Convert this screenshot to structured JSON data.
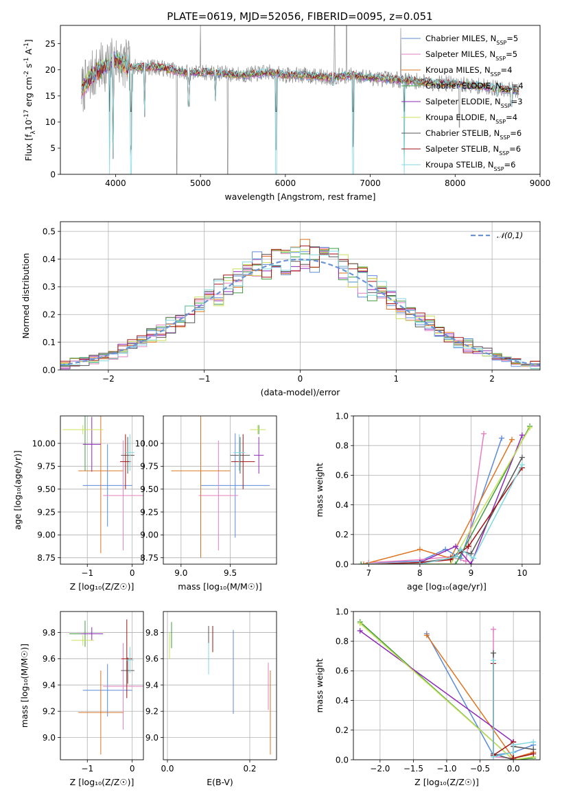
{
  "title": "PLATE=0619, MJD=52056, FIBERID=0095, z=0.051",
  "colors": {
    "chabrier_miles": "#5b8bd9",
    "salpeter_miles": "#e57fc0",
    "kroupa_miles": "#de7420",
    "chabrier_elodie": "#3e9b3e",
    "salpeter_elodie": "#8e2ab5",
    "kroupa_elodie": "#c9e05a",
    "chabrier_stelib": "#555555",
    "salpeter_stelib": "#a11212",
    "kroupa_stelib": "#7fd8e0",
    "data": "#8c8c8c",
    "normal": "#6a93d6"
  },
  "legend_spectrum": [
    {
      "key": "chabrier_miles",
      "prefix": "Chabrier MILES, N",
      "sub": "SSP",
      "suffix": "=5"
    },
    {
      "key": "salpeter_miles",
      "prefix": "Salpeter MILES, N",
      "sub": "SSP",
      "suffix": "=5"
    },
    {
      "key": "kroupa_miles",
      "prefix": "Kroupa MILES, N",
      "sub": "SSP",
      "suffix": "=4"
    },
    {
      "key": "chabrier_elodie",
      "prefix": "Chabrier ELODIE, N",
      "sub": "SSP",
      "suffix": "=4"
    },
    {
      "key": "salpeter_elodie",
      "prefix": "Salpeter ELODIE, N",
      "sub": "SSP",
      "suffix": "=3"
    },
    {
      "key": "kroupa_elodie",
      "prefix": "Kroupa ELODIE, N",
      "sub": "SSP",
      "suffix": "=4"
    },
    {
      "key": "chabrier_stelib",
      "prefix": "Chabrier STELIB, N",
      "sub": "SSP",
      "suffix": "=6"
    },
    {
      "key": "salpeter_stelib",
      "prefix": "Salpeter STELIB, N",
      "sub": "SSP",
      "suffix": "=6"
    },
    {
      "key": "kroupa_stelib",
      "prefix": "Kroupa STELIB, N",
      "sub": "SSP",
      "suffix": "=6"
    }
  ],
  "chart_data": [
    {
      "id": "spectrum",
      "type": "line",
      "xlabel": "wavelength [Angstrom, rest frame]",
      "ylabel_parts": [
        "Flux [f",
        "λ",
        "10",
        "-17",
        " erg cm",
        "-2",
        " s",
        "-1",
        " A",
        "-1",
        "]"
      ],
      "xlim": [
        3350,
        9000
      ],
      "ylim": [
        0,
        28.5
      ],
      "xticks": [
        4000,
        5000,
        6000,
        7000,
        8000,
        9000
      ],
      "yticks": [
        0,
        5,
        10,
        15,
        20,
        25
      ],
      "data_range": [
        3600,
        8750
      ],
      "continuum": [
        [
          3600,
          16
        ],
        [
          3700,
          18.5
        ],
        [
          3800,
          20
        ],
        [
          3900,
          21
        ],
        [
          4000,
          22
        ],
        [
          4100,
          21
        ],
        [
          4200,
          20.5
        ],
        [
          4500,
          20.5
        ],
        [
          4800,
          19.5
        ],
        [
          5100,
          19.5
        ],
        [
          5500,
          19
        ],
        [
          5800,
          19.5
        ],
        [
          6000,
          19
        ],
        [
          6200,
          19
        ],
        [
          6500,
          18.5
        ],
        [
          6800,
          19
        ],
        [
          7000,
          18.5
        ],
        [
          7400,
          18
        ],
        [
          7800,
          17.5
        ],
        [
          8200,
          17
        ],
        [
          8500,
          16.5
        ],
        [
          8750,
          16
        ]
      ],
      "dips": [
        [
          3930,
          0
        ],
        [
          3970,
          3
        ],
        [
          4180,
          0
        ],
        [
          4340,
          11
        ],
        [
          4860,
          13
        ],
        [
          5175,
          14
        ],
        [
          5890,
          0
        ],
        [
          6563,
          17
        ],
        [
          6800,
          0
        ],
        [
          7400,
          0
        ],
        [
          8500,
          15
        ],
        [
          8660,
          13
        ]
      ],
      "data_spikes": [
        [
          4720,
          0
        ],
        [
          5320,
          0
        ],
        [
          5000,
          29
        ],
        [
          6580,
          29
        ],
        [
          6720,
          29
        ],
        [
          7360,
          28
        ],
        [
          8050,
          9
        ]
      ]
    },
    {
      "id": "residuals",
      "type": "histogram",
      "xlabel": "(data-model)/error",
      "ylabel": "Normed distribution",
      "xlim": [
        -2.5,
        2.5
      ],
      "ylim": [
        0,
        0.535
      ],
      "xticks": [
        -2,
        -1,
        0,
        1,
        2
      ],
      "yticks": [
        0,
        0.1,
        0.2,
        0.3,
        0.4,
        0.5
      ],
      "legend": "𝒩(0,1)",
      "bin_width": 0.1
    },
    {
      "id": "age_vs_Z",
      "type": "scatter",
      "xlabel": "Z [log₁₀(Z/Z☉)]",
      "ylabel": "age  [log₁₀(age/yr)]",
      "xlim": [
        -1.6,
        0.25
      ],
      "ylim": [
        8.68,
        10.3
      ],
      "xticks": [
        -1,
        0
      ],
      "yticks": [
        8.75,
        9.0,
        9.25,
        9.5,
        9.75,
        10.0
      ],
      "points": [
        {
          "c": "chabrier_miles",
          "x": -0.55,
          "y": 9.54,
          "xe": 0.55,
          "ye": 0.45
        },
        {
          "c": "salpeter_miles",
          "x": -0.2,
          "y": 9.43,
          "xe": 0.45,
          "ye": 0.6
        },
        {
          "c": "kroupa_miles",
          "x": -0.7,
          "y": 9.7,
          "xe": 0.5,
          "ye": 0.9
        },
        {
          "c": "chabrier_elodie",
          "x": -1.05,
          "y": 10.15,
          "xe": 0.35,
          "ye": 0.45
        },
        {
          "c": "salpeter_elodie",
          "x": -0.9,
          "y": 9.99,
          "xe": 0.2,
          "ye": 0.3
        },
        {
          "c": "kroupa_elodie",
          "x": -1.1,
          "y": 10.15,
          "xe": 0.45,
          "ye": 0.05
        },
        {
          "c": "chabrier_stelib",
          "x": -0.1,
          "y": 9.87,
          "xe": 0.15,
          "ye": 0.2
        },
        {
          "c": "salpeter_stelib",
          "x": -0.15,
          "y": 9.8,
          "xe": 0.12,
          "ye": 0.3
        },
        {
          "c": "kroupa_stelib",
          "x": -0.05,
          "y": 9.9,
          "xe": 0.1,
          "ye": 0.2
        }
      ]
    },
    {
      "id": "age_vs_mass",
      "type": "scatter",
      "xlabel": "mass [log₁₀(M/M☉)]",
      "ylabel": "",
      "xlim": [
        8.82,
        9.97
      ],
      "ylim": [
        8.68,
        10.3
      ],
      "xticks": [
        9.0,
        9.5
      ],
      "yticks": [
        8.75,
        9.0,
        9.25,
        9.5,
        9.75,
        10.0
      ],
      "points": [
        {
          "c": "chabrier_miles",
          "x": 9.55,
          "y": 9.54,
          "xe": 0.35,
          "ye": 0.57
        },
        {
          "c": "salpeter_miles",
          "x": 9.38,
          "y": 9.43,
          "xe": 0.2,
          "ye": 0.6
        },
        {
          "c": "kroupa_miles",
          "x": 9.2,
          "y": 9.7,
          "xe": 0.3,
          "ye": 0.95
        },
        {
          "c": "chabrier_elodie",
          "x": 9.79,
          "y": 10.15,
          "xe": 0.05,
          "ye": 0.05
        },
        {
          "c": "salpeter_elodie",
          "x": 9.79,
          "y": 9.87,
          "xe": 0.05,
          "ye": 0.2
        },
        {
          "c": "kroupa_elodie",
          "x": 9.78,
          "y": 10.15,
          "xe": 0.08,
          "ye": 0.05
        },
        {
          "c": "chabrier_stelib",
          "x": 9.6,
          "y": 9.87,
          "xe": 0.1,
          "ye": 0.2
        },
        {
          "c": "salpeter_stelib",
          "x": 9.63,
          "y": 9.8,
          "xe": 0.12,
          "ye": 0.3
        },
        {
          "c": "kroupa_stelib",
          "x": 9.59,
          "y": 9.9,
          "xe": 0.06,
          "ye": 0.2
        }
      ]
    },
    {
      "id": "weight_vs_age",
      "type": "line",
      "xlabel": "age  [log₁₀(age/yr)]",
      "ylabel": "mass weight",
      "xlim": [
        6.7,
        10.35
      ],
      "ylim": [
        0,
        1
      ],
      "xticks": [
        7,
        8,
        9,
        10
      ],
      "yticks": [
        0,
        0.2,
        0.4,
        0.6,
        0.8,
        1.0
      ],
      "series": [
        {
          "c": "chabrier_miles",
          "x": [
            7.0,
            8.0,
            8.5,
            8.8,
            9.6
          ],
          "y": [
            0.01,
            0.02,
            0.1,
            0.04,
            0.85
          ]
        },
        {
          "c": "salpeter_miles",
          "x": [
            7.0,
            8.0,
            8.6,
            8.9,
            9.25
          ],
          "y": [
            0.01,
            0.03,
            0.05,
            0.02,
            0.88
          ]
        },
        {
          "c": "kroupa_miles",
          "x": [
            6.9,
            8.0,
            8.6,
            9.8
          ],
          "y": [
            0.0,
            0.1,
            0.04,
            0.84
          ]
        },
        {
          "c": "chabrier_elodie",
          "x": [
            6.85,
            8.0,
            8.7,
            10.15
          ],
          "y": [
            0.0,
            0.0,
            0.0,
            0.93
          ]
        },
        {
          "c": "salpeter_elodie",
          "x": [
            8.0,
            8.7,
            9.0,
            10.0
          ],
          "y": [
            0.01,
            0.12,
            0.0,
            0.87
          ]
        },
        {
          "c": "kroupa_elodie",
          "x": [
            7.0,
            8.0,
            8.6,
            10.15
          ],
          "y": [
            0.0,
            0.0,
            0.0,
            0.92
          ]
        },
        {
          "c": "chabrier_stelib",
          "x": [
            7.0,
            8.0,
            8.6,
            8.8,
            9.0,
            10.0
          ],
          "y": [
            0.0,
            0.01,
            0.04,
            0.09,
            0.07,
            0.72
          ]
        },
        {
          "c": "salpeter_stelib",
          "x": [
            7.0,
            8.0,
            8.6,
            8.95,
            10.0
          ],
          "y": [
            0.0,
            0.01,
            0.03,
            0.12,
            0.65
          ]
        },
        {
          "c": "kroupa_stelib",
          "x": [
            7.0,
            8.0,
            8.7,
            8.8,
            9.05,
            10.0
          ],
          "y": [
            0.0,
            0.0,
            0.05,
            0.1,
            0.04,
            0.67
          ]
        }
      ]
    },
    {
      "id": "mass_vs_Z",
      "type": "scatter",
      "xlabel": "Z [log₁₀(Z/Z☉)]",
      "ylabel": "mass [log₁₀(M/M☉)]",
      "xlim": [
        -1.6,
        0.25
      ],
      "ylim": [
        8.83,
        9.96
      ],
      "xticks": [
        -1,
        0
      ],
      "yticks": [
        9.0,
        9.2,
        9.4,
        9.6,
        9.8
      ],
      "points": [
        {
          "c": "chabrier_miles",
          "x": -0.55,
          "y": 9.36,
          "xe": 0.55,
          "ye": 0.2
        },
        {
          "c": "salpeter_miles",
          "x": -0.2,
          "y": 9.39,
          "xe": 0.45,
          "ye": 0.33
        },
        {
          "c": "kroupa_miles",
          "x": -0.7,
          "y": 9.19,
          "xe": 0.5,
          "ye": 0.32
        },
        {
          "c": "chabrier_elodie",
          "x": -1.05,
          "y": 9.79,
          "xe": 0.35,
          "ye": 0.1
        },
        {
          "c": "salpeter_elodie",
          "x": -0.9,
          "y": 9.79,
          "xe": 0.25,
          "ye": 0.05
        },
        {
          "c": "kroupa_elodie",
          "x": -1.1,
          "y": 9.74,
          "xe": 0.25,
          "ye": 0.04
        },
        {
          "c": "chabrier_stelib",
          "x": -0.1,
          "y": 9.51,
          "xe": 0.15,
          "ye": 0.1
        },
        {
          "c": "salpeter_stelib",
          "x": -0.12,
          "y": 9.6,
          "xe": 0.12,
          "ye": 0.3
        },
        {
          "c": "kroupa_stelib",
          "x": -0.05,
          "y": 9.59,
          "xe": 0.08,
          "ye": 0.1
        }
      ]
    },
    {
      "id": "mass_vs_EBV",
      "type": "scatter",
      "xlabel": "E(B-V)",
      "ylabel": "",
      "xlim": [
        -0.01,
        0.265
      ],
      "ylim": [
        8.83,
        9.96
      ],
      "xticks": [
        0.0,
        0.2
      ],
      "yticks": [
        9.0,
        9.2,
        9.4,
        9.6,
        9.8
      ],
      "points": [
        {
          "c": "chabrier_miles",
          "x": 0.16,
          "y": 9.5,
          "xe": 0,
          "ye": 0.32
        },
        {
          "c": "salpeter_miles",
          "x": 0.245,
          "y": 9.39,
          "xe": 0,
          "ye": 0.18
        },
        {
          "c": "kroupa_miles",
          "x": 0.25,
          "y": 9.19,
          "xe": 0,
          "ye": 0.32
        },
        {
          "c": "chabrier_elodie",
          "x": 0.01,
          "y": 9.78,
          "xe": 0,
          "ye": 0.1
        },
        {
          "c": "salpeter_elodie",
          "x": 0.1,
          "y": 9.72,
          "xe": 0,
          "ye": 0.13
        },
        {
          "c": "kroupa_elodie",
          "x": 0.005,
          "y": 9.7,
          "xe": 0,
          "ye": 0.1
        },
        {
          "c": "chabrier_stelib",
          "x": 0.1,
          "y": 9.7,
          "xe": 0,
          "ye": 0.15
        },
        {
          "c": "salpeter_stelib",
          "x": 0.11,
          "y": 9.75,
          "xe": 0,
          "ye": 0.1
        },
        {
          "c": "kroupa_stelib",
          "x": 0.1,
          "y": 9.6,
          "xe": 0,
          "ye": 0.12
        }
      ]
    },
    {
      "id": "weight_vs_Z",
      "type": "line",
      "xlabel": "Z [log₁₀(Z/Z☉)]",
      "ylabel": "mass weight",
      "xlim": [
        -2.4,
        0.4
      ],
      "ylim": [
        0,
        1
      ],
      "xticks": [
        -2.0,
        -1.5,
        -1.0,
        -0.5,
        0.0
      ],
      "yticks": [
        0,
        0.2,
        0.4,
        0.6,
        0.8,
        1.0
      ],
      "series": [
        {
          "c": "chabrier_miles",
          "x": [
            -1.3,
            -0.3,
            0.0,
            0.3
          ],
          "y": [
            0.85,
            0.03,
            0.05,
            0.1
          ]
        },
        {
          "c": "salpeter_miles",
          "x": [
            -0.3,
            -0.3,
            0.0,
            0.3
          ],
          "y": [
            0.88,
            0.02,
            0.01,
            0.05
          ]
        },
        {
          "c": "kroupa_miles",
          "x": [
            -1.3,
            0.0,
            0.3
          ],
          "y": [
            0.84,
            0.01,
            0.05
          ]
        },
        {
          "c": "chabrier_elodie",
          "x": [
            -2.3,
            0.0,
            0.3
          ],
          "y": [
            0.93,
            0.0,
            0.01
          ]
        },
        {
          "c": "salpeter_elodie",
          "x": [
            -2.3,
            0.0,
            0.0
          ],
          "y": [
            0.87,
            0.12,
            0.01
          ]
        },
        {
          "c": "kroupa_elodie",
          "x": [
            -2.3,
            0.0,
            0.3
          ],
          "y": [
            0.92,
            0.0,
            0.02
          ]
        },
        {
          "c": "chabrier_stelib",
          "x": [
            -0.3,
            -0.3,
            0.0,
            0.0,
            0.3
          ],
          "y": [
            0.72,
            0.04,
            0.0,
            0.09,
            0.07
          ]
        },
        {
          "c": "salpeter_stelib",
          "x": [
            -0.3,
            -0.3,
            0.0,
            0.0,
            0.3
          ],
          "y": [
            0.65,
            0.03,
            0.12,
            0.01,
            0.04
          ]
        },
        {
          "c": "kroupa_stelib",
          "x": [
            -0.3,
            -0.3,
            0.0,
            0.0,
            0.3
          ],
          "y": [
            0.67,
            0.02,
            0.05,
            0.1,
            0.12
          ]
        }
      ]
    }
  ]
}
